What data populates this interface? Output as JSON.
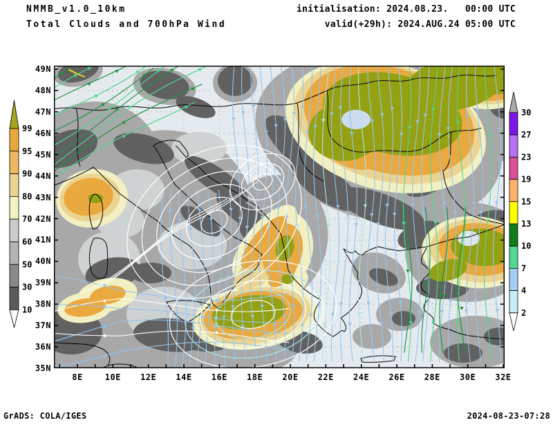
{
  "header": {
    "model": "NMMB_v1.0_10km",
    "product": "Total Clouds and 700hPa Wind",
    "init_label": "initialisation: 2024.08.23.   00:00 UTC",
    "valid_label": "valid(+29h): 2024.AUG.24 05:00 UTC"
  },
  "footer": {
    "left": "GrADS: COLA/IGES",
    "right": "2024-08-23-07:28"
  },
  "axes": {
    "lat_labels": [
      "49N",
      "48N",
      "47N",
      "46N",
      "45N",
      "44N",
      "43N",
      "42N",
      "41N",
      "40N",
      "39N",
      "38N",
      "37N",
      "36N",
      "35N"
    ],
    "lon_labels": [
      "8E",
      "10E",
      "12E",
      "14E",
      "16E",
      "18E",
      "20E",
      "22E",
      "24E",
      "26E",
      "28E",
      "30E",
      "32E"
    ]
  },
  "cloud_scale": {
    "name": "total-cloud-cover-percent",
    "values": [
      "99",
      "95",
      "90",
      "80",
      "70",
      "60",
      "50",
      "30",
      "10"
    ],
    "segment_colors_top_to_bottom": [
      "#a5a521",
      "#e8a93c",
      "#edb85e",
      "#ebd491",
      "#f2f2c3",
      "#cccccc",
      "#b3b3b3",
      "#8a8a8a",
      "#5a5a5a",
      "#fafafa"
    ]
  },
  "wind_scale": {
    "name": "wind-speed-scale",
    "values": [
      "30",
      "27",
      "23",
      "19",
      "15",
      "13",
      "10",
      "7",
      "4",
      "2"
    ],
    "segment_colors_top_to_bottom": [
      "#aaaaaa",
      "#7d16ea",
      "#b670f7",
      "#db4f96",
      "#ffb369",
      "#ffff00",
      "#0f7d18",
      "#4fd992",
      "#a5cff2",
      "#c5eef2",
      "#ffffff"
    ]
  },
  "map_colors": {
    "background": "#e5eaee",
    "grid": "#b6babc",
    "coast": "#000000",
    "blue_light": "#94c4ec",
    "cyan_pale": "#aee6ea",
    "green_mid": "#4ed88e",
    "green_dark": "#1e9440",
    "white_stream": "#ffffff",
    "yellow_stream": "#e0e020",
    "shade_dark": "#616161",
    "shade_medium": "#a8a8a8",
    "shade_cream": "#f2f0c2",
    "shade_tan": "#ebd491",
    "shade_orange": "#eaa93e",
    "shade_olive": "#95a113"
  }
}
